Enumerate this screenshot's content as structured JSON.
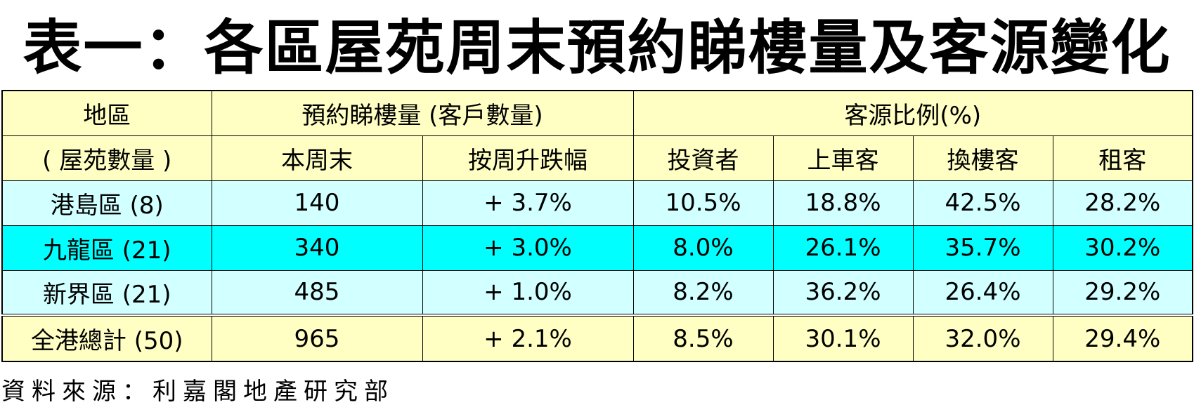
{
  "title": "表一：各區屋苑周末預約睇樓量及客源變化",
  "headers": {
    "region_line1": "地區",
    "region_line2": "( 屋苑數量 )",
    "booking_group": "預約睇樓量 (客戶數量)",
    "source_group": "客源比例(%)",
    "this_weekend": "本周末",
    "weekly_change": "按周升跌幅",
    "investor": "投資者",
    "first_buyer": "上車客",
    "upgrader": "換樓客",
    "tenant": "租客"
  },
  "rows": [
    {
      "region": "港島區 (8)",
      "this_weekend": "140",
      "weekly_change": "+ 3.7%",
      "investor": "10.5%",
      "first_buyer": "18.8%",
      "upgrader": "42.5%",
      "tenant": "28.2%"
    },
    {
      "region": "九龍區 (21)",
      "this_weekend": "340",
      "weekly_change": "+ 3.0%",
      "investor": "8.0%",
      "first_buyer": "26.1%",
      "upgrader": "35.7%",
      "tenant": "30.2%"
    },
    {
      "region": "新界區 (21)",
      "this_weekend": "485",
      "weekly_change": "+ 1.0%",
      "investor": "8.2%",
      "first_buyer": "36.2%",
      "upgrader": "26.4%",
      "tenant": "29.2%"
    }
  ],
  "total": {
    "region": "全港總計 (50)",
    "this_weekend": "965",
    "weekly_change": "+ 2.1%",
    "investor": "8.5%",
    "first_buyer": "30.1%",
    "upgrader": "32.0%",
    "tenant": "29.4%"
  },
  "source": "資料來源：利嘉閣地產研究部",
  "colors": {
    "header_bg": "#ffffc4",
    "row_light_bg": "#d2ffff",
    "row_cyan_bg": "#00ffff",
    "total_bg": "#ffffc4"
  }
}
